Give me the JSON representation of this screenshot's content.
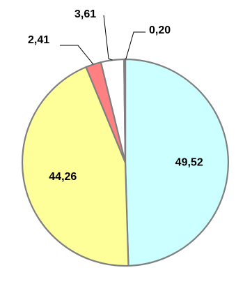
{
  "chart_data": {
    "type": "pie",
    "start_angle_deg": 0,
    "direction": "clockwise",
    "slices": [
      {
        "label": "49,52",
        "value": 49.52,
        "color": "#CCFFFF",
        "label_style": "inside"
      },
      {
        "label": "44,26",
        "value": 44.26,
        "color": "#FFFF99",
        "label_style": "inside"
      },
      {
        "label": "2,41",
        "value": 2.41,
        "color": "#FF8080",
        "label_style": "outside"
      },
      {
        "label": "3,61",
        "value": 3.61,
        "color": "#FFFFFF",
        "label_style": "outside"
      },
      {
        "label": "0,20",
        "value": 0.2,
        "color": "#C0C0C0",
        "label_style": "outside"
      }
    ]
  }
}
